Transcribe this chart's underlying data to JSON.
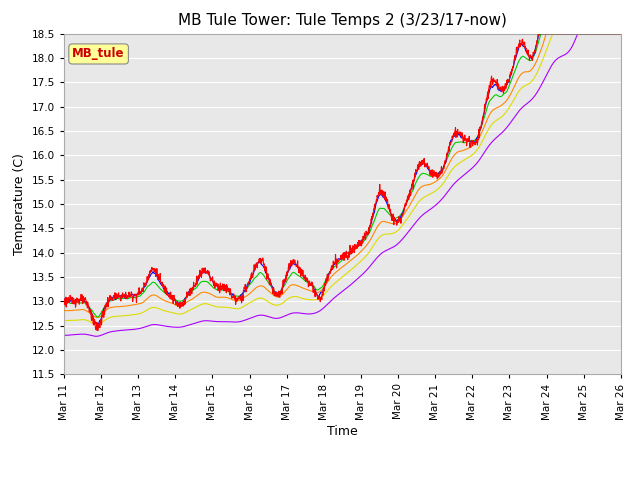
{
  "title": "MB Tule Tower: Tule Temps 2 (3/23/17-now)",
  "xlabel": "Time",
  "ylabel": "Temperature (C)",
  "ylim": [
    11.5,
    18.5
  ],
  "xlim": [
    0,
    25
  ],
  "x_tick_labels": [
    "Mar 11",
    "Mar 12",
    "Mar 13",
    "Mar 14",
    "Mar 15",
    "Mar 16",
    "Mar 17",
    "Mar 18",
    "Mar 19",
    "Mar 20",
    "Mar 21",
    "Mar 22",
    "Mar 23",
    "Mar 24",
    "Mar 25",
    "Mar 26"
  ],
  "series_colors": {
    "Tul2_Tw+2": "#ff0000",
    "Tul2_Ts-2": "#0000ff",
    "Tul2_Ts-4": "#00cc00",
    "Tul2_Ts-8": "#ff8800",
    "Tul2_Ts-16": "#dddd00",
    "Tul2_Ts-32": "#aa00ff"
  },
  "legend_box_label": "MB_tule",
  "background_color": "#ffffff",
  "plot_bg_color": "#e8e8e8",
  "title_fontsize": 11,
  "axis_fontsize": 9,
  "tick_fontsize": 7.5
}
